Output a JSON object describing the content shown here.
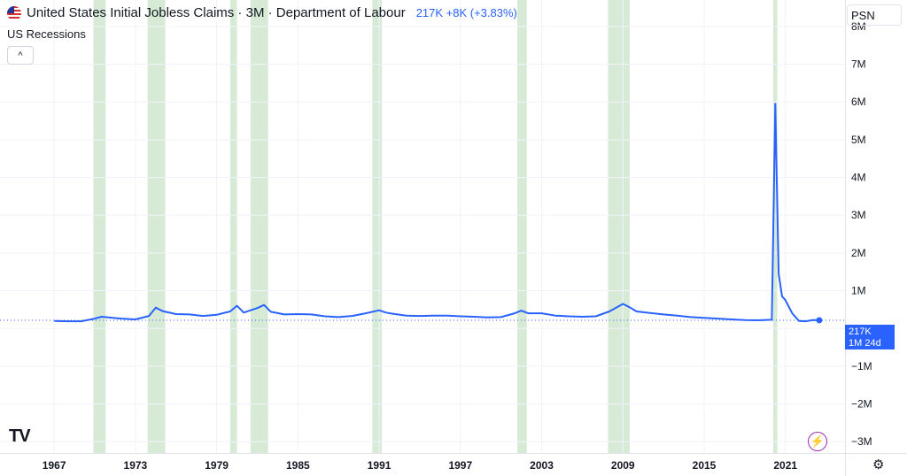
{
  "legend": {
    "title": "United States Initial Jobless Claims · 3M · Department of Labour",
    "value_text": "217K +8K (+3.83%)",
    "recessions_label": "US Recessions",
    "collapse_symbol": "^"
  },
  "toolbar": {
    "scale_label": "PSN",
    "logo_text": "TV",
    "settings_symbol": "⚙",
    "bolt_symbol": "⚡"
  },
  "price_tag": {
    "value": "217K",
    "countdown": "1M 24d"
  },
  "colors": {
    "line": "#2962ff",
    "recession": "#d6ead6",
    "grid": "#f0f3fa",
    "text": "#131722",
    "accent": "#2962ff"
  },
  "chart_data": {
    "type": "line",
    "title": "United States Initial Jobless Claims · 3M · Department of Labour",
    "xlabel": "",
    "ylabel": "",
    "x_ticks": [
      "1967",
      "1973",
      "1979",
      "1985",
      "1991",
      "1997",
      "2003",
      "2009",
      "2015",
      "2021"
    ],
    "x_tick_years": [
      1967,
      1973,
      1979,
      1985,
      1991,
      1997,
      2003,
      2009,
      2015,
      2021
    ],
    "y_ticks": [
      "8M",
      "7M",
      "6M",
      "5M",
      "4M",
      "3M",
      "2M",
      "1M",
      "−1M",
      "−2M",
      "−3M"
    ],
    "y_tick_values": [
      8000000,
      7000000,
      6000000,
      5000000,
      4000000,
      3000000,
      2000000,
      1000000,
      -1000000,
      -2000000,
      -3000000
    ],
    "xlim": [
      1963,
      2025.4
    ],
    "ylim": [
      -3300000,
      8700000
    ],
    "grid": true,
    "recessions": [
      [
        1969.9,
        1970.8
      ],
      [
        1973.9,
        1975.2
      ],
      [
        1980.0,
        1980.5
      ],
      [
        1981.5,
        1982.8
      ],
      [
        1990.5,
        1991.2
      ],
      [
        2001.2,
        2001.9
      ],
      [
        2007.9,
        2009.5
      ],
      [
        2020.1,
        2020.4
      ]
    ],
    "series": [
      {
        "x": [
          1967,
          1968,
          1969,
          1970,
          1970.5,
          1971,
          1972,
          1973,
          1974,
          1974.5,
          1975,
          1976,
          1977,
          1978,
          1979,
          1980,
          1980.5,
          1981,
          1982,
          1982.5,
          1983,
          1984,
          1985,
          1986,
          1987,
          1988,
          1989,
          1990,
          1991,
          1991.5,
          1992,
          1993,
          1994,
          1995,
          1996,
          1997,
          1998,
          1999,
          2000,
          2001,
          2001.5,
          2002,
          2003,
          2004,
          2005,
          2006,
          2007,
          2008,
          2009,
          2009.5,
          2010,
          2011,
          2012,
          2013,
          2014,
          2015,
          2016,
          2017,
          2018,
          2019,
          2020.0,
          2020.25,
          2020.5,
          2020.75,
          2021,
          2021.5,
          2022,
          2022.5,
          2023,
          2023.5
        ],
        "y": [
          200000,
          190000,
          190000,
          260000,
          310000,
          290000,
          260000,
          240000,
          330000,
          550000,
          460000,
          380000,
          370000,
          330000,
          360000,
          450000,
          600000,
          420000,
          540000,
          620000,
          440000,
          370000,
          380000,
          370000,
          320000,
          300000,
          330000,
          400000,
          480000,
          420000,
          390000,
          340000,
          330000,
          340000,
          340000,
          320000,
          310000,
          290000,
          300000,
          400000,
          470000,
          400000,
          400000,
          340000,
          320000,
          310000,
          320000,
          450000,
          650000,
          560000,
          450000,
          410000,
          370000,
          340000,
          300000,
          280000,
          260000,
          240000,
          220000,
          215000,
          230000,
          5950000,
          1450000,
          850000,
          750000,
          400000,
          200000,
          190000,
          220000,
          217000
        ]
      }
    ],
    "last_value": 217000
  }
}
